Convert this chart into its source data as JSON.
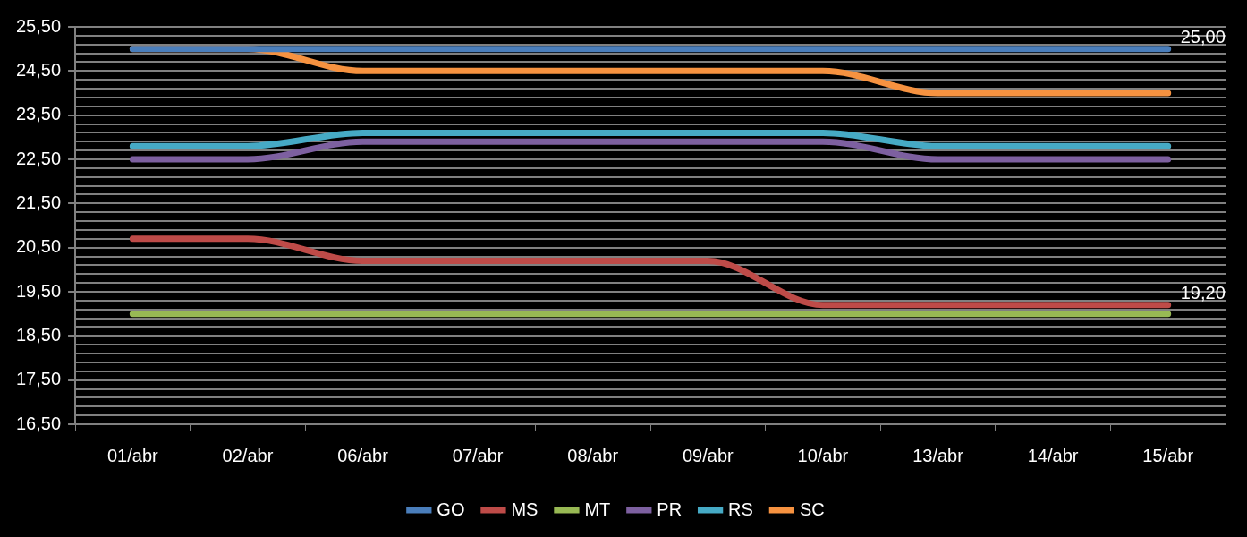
{
  "chart_data": {
    "type": "line",
    "categories": [
      "01/abr",
      "02/abr",
      "06/abr",
      "07/abr",
      "08/abr",
      "09/abr",
      "10/abr",
      "13/abr",
      "14/abr",
      "15/abr"
    ],
    "series": [
      {
        "name": "GO",
        "color": "#4a7ebb",
        "values": [
          25.0,
          25.0,
          25.0,
          25.0,
          25.0,
          25.0,
          25.0,
          25.0,
          25.0,
          25.0
        ],
        "value_labels": [
          null,
          null,
          null,
          null,
          null,
          null,
          null,
          null,
          null,
          "25,00"
        ]
      },
      {
        "name": "MS",
        "color": "#be4b48",
        "values": [
          20.7,
          20.7,
          20.2,
          20.2,
          20.2,
          20.2,
          19.2,
          19.2,
          19.2,
          19.2
        ],
        "value_labels": [
          null,
          null,
          null,
          null,
          null,
          null,
          null,
          null,
          null,
          "19,20"
        ]
      },
      {
        "name": "MT",
        "color": "#98b954",
        "values": [
          19.0,
          19.0,
          19.0,
          19.0,
          19.0,
          19.0,
          19.0,
          19.0,
          19.0,
          19.0
        ]
      },
      {
        "name": "PR",
        "color": "#7d60a0",
        "values": [
          22.5,
          22.5,
          22.9,
          22.9,
          22.9,
          22.9,
          22.9,
          22.5,
          22.5,
          22.5
        ]
      },
      {
        "name": "RS",
        "color": "#46aac5",
        "values": [
          22.8,
          22.8,
          23.1,
          23.1,
          23.1,
          23.1,
          23.1,
          22.8,
          22.8,
          22.8
        ]
      },
      {
        "name": "SC",
        "color": "#f69240",
        "values": [
          25.0,
          25.0,
          24.5,
          24.5,
          24.5,
          24.5,
          24.5,
          24.0,
          24.0,
          24.0
        ]
      }
    ],
    "ylim": [
      16.5,
      25.5
    ],
    "yticks": [
      {
        "value": 16.5,
        "label": "16,50"
      },
      {
        "value": 16.7,
        "label": null
      },
      {
        "value": 16.9,
        "label": null
      },
      {
        "value": 17.1,
        "label": null
      },
      {
        "value": 17.3,
        "label": null
      },
      {
        "value": 17.5,
        "label": "17,50"
      },
      {
        "value": 17.7,
        "label": null
      },
      {
        "value": 17.9,
        "label": null
      },
      {
        "value": 18.1,
        "label": null
      },
      {
        "value": 18.3,
        "label": null
      },
      {
        "value": 18.5,
        "label": "18,50"
      },
      {
        "value": 18.7,
        "label": null
      },
      {
        "value": 18.9,
        "label": null
      },
      {
        "value": 19.1,
        "label": null
      },
      {
        "value": 19.3,
        "label": null
      },
      {
        "value": 19.5,
        "label": "19,50"
      },
      {
        "value": 19.7,
        "label": null
      },
      {
        "value": 19.9,
        "label": null
      },
      {
        "value": 20.1,
        "label": null
      },
      {
        "value": 20.3,
        "label": null
      },
      {
        "value": 20.5,
        "label": "20,50"
      },
      {
        "value": 20.7,
        "label": null
      },
      {
        "value": 20.9,
        "label": null
      },
      {
        "value": 21.1,
        "label": null
      },
      {
        "value": 21.3,
        "label": null
      },
      {
        "value": 21.5,
        "label": "21,50"
      },
      {
        "value": 21.7,
        "label": null
      },
      {
        "value": 21.9,
        "label": null
      },
      {
        "value": 22.1,
        "label": null
      },
      {
        "value": 22.3,
        "label": null
      },
      {
        "value": 22.5,
        "label": "22,50"
      },
      {
        "value": 22.7,
        "label": null
      },
      {
        "value": 22.9,
        "label": null
      },
      {
        "value": 23.1,
        "label": null
      },
      {
        "value": 23.3,
        "label": null
      },
      {
        "value": 23.5,
        "label": "23,50"
      },
      {
        "value": 23.7,
        "label": null
      },
      {
        "value": 23.9,
        "label": null
      },
      {
        "value": 24.1,
        "label": null
      },
      {
        "value": 24.3,
        "label": null
      },
      {
        "value": 24.5,
        "label": "24,50"
      },
      {
        "value": 24.7,
        "label": null
      },
      {
        "value": 24.9,
        "label": null
      },
      {
        "value": 25.1,
        "label": null
      },
      {
        "value": 25.3,
        "label": null
      },
      {
        "value": 25.5,
        "label": "25,50"
      }
    ],
    "grid": "y",
    "legend": "bottom",
    "marker": "none",
    "line_style": "solid"
  }
}
